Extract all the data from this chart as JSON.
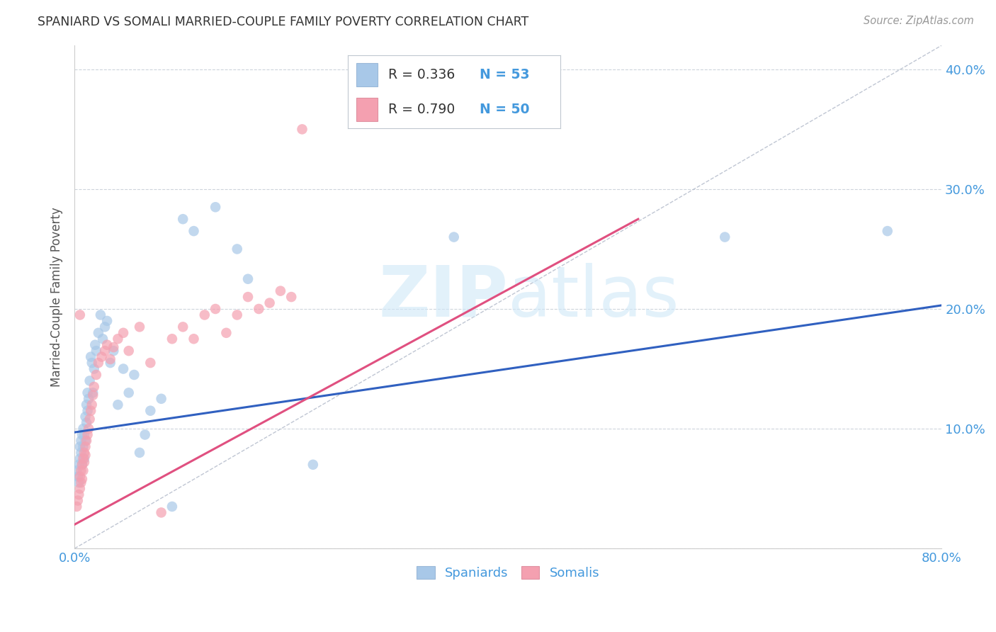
{
  "title": "SPANIARD VS SOMALI MARRIED-COUPLE FAMILY POVERTY CORRELATION CHART",
  "source": "Source: ZipAtlas.com",
  "ylabel": "Married-Couple Family Poverty",
  "xlim": [
    0.0,
    0.8
  ],
  "ylim": [
    0.0,
    0.42
  ],
  "xtick_vals": [
    0.0,
    0.1,
    0.2,
    0.3,
    0.4,
    0.5,
    0.6,
    0.7,
    0.8
  ],
  "xticklabels": [
    "0.0%",
    "",
    "",
    "",
    "",
    "",
    "",
    "",
    "80.0%"
  ],
  "ytick_vals": [
    0.0,
    0.1,
    0.2,
    0.3,
    0.4
  ],
  "yticklabels_right": [
    "",
    "10.0%",
    "20.0%",
    "30.0%",
    "40.0%"
  ],
  "spaniards_color": "#a8c8e8",
  "somalis_color": "#f4a0b0",
  "spaniards_line_color": "#3060c0",
  "somalis_line_color": "#e05080",
  "diagonal_color": "#b0b8c8",
  "watermark_color": "#d0e8f8",
  "background_color": "#ffffff",
  "grid_color": "#c8d0d8",
  "tick_label_color": "#4499dd",
  "title_color": "#333333",
  "legend_text_color": "#333333",
  "legend_value_color": "#4499dd",
  "spaniards_x": [
    0.002,
    0.003,
    0.004,
    0.004,
    0.005,
    0.005,
    0.006,
    0.006,
    0.007,
    0.007,
    0.008,
    0.008,
    0.009,
    0.009,
    0.01,
    0.01,
    0.011,
    0.011,
    0.012,
    0.012,
    0.013,
    0.014,
    0.015,
    0.016,
    0.017,
    0.018,
    0.019,
    0.02,
    0.022,
    0.024,
    0.026,
    0.028,
    0.03,
    0.033,
    0.036,
    0.04,
    0.045,
    0.05,
    0.055,
    0.06,
    0.065,
    0.07,
    0.08,
    0.09,
    0.1,
    0.11,
    0.13,
    0.15,
    0.16,
    0.22,
    0.35,
    0.6,
    0.75
  ],
  "spaniards_y": [
    0.065,
    0.06,
    0.055,
    0.07,
    0.075,
    0.085,
    0.08,
    0.09,
    0.095,
    0.07,
    0.085,
    0.1,
    0.075,
    0.095,
    0.11,
    0.09,
    0.12,
    0.105,
    0.115,
    0.13,
    0.125,
    0.14,
    0.16,
    0.155,
    0.13,
    0.15,
    0.17,
    0.165,
    0.18,
    0.195,
    0.175,
    0.185,
    0.19,
    0.155,
    0.165,
    0.12,
    0.15,
    0.13,
    0.145,
    0.08,
    0.095,
    0.115,
    0.125,
    0.035,
    0.275,
    0.265,
    0.285,
    0.25,
    0.225,
    0.07,
    0.26,
    0.26,
    0.265
  ],
  "somalis_x": [
    0.002,
    0.003,
    0.004,
    0.005,
    0.005,
    0.006,
    0.006,
    0.007,
    0.007,
    0.008,
    0.008,
    0.009,
    0.009,
    0.01,
    0.01,
    0.011,
    0.012,
    0.013,
    0.014,
    0.015,
    0.016,
    0.017,
    0.018,
    0.02,
    0.022,
    0.025,
    0.028,
    0.03,
    0.033,
    0.036,
    0.04,
    0.045,
    0.05,
    0.06,
    0.07,
    0.08,
    0.09,
    0.1,
    0.11,
    0.12,
    0.13,
    0.14,
    0.15,
    0.16,
    0.17,
    0.18,
    0.19,
    0.2,
    0.21,
    0.005
  ],
  "somalis_y": [
    0.035,
    0.04,
    0.045,
    0.05,
    0.06,
    0.055,
    0.065,
    0.07,
    0.058,
    0.075,
    0.065,
    0.08,
    0.072,
    0.085,
    0.078,
    0.09,
    0.095,
    0.1,
    0.108,
    0.115,
    0.12,
    0.128,
    0.135,
    0.145,
    0.155,
    0.16,
    0.165,
    0.17,
    0.158,
    0.168,
    0.175,
    0.18,
    0.165,
    0.185,
    0.155,
    0.03,
    0.175,
    0.185,
    0.175,
    0.195,
    0.2,
    0.18,
    0.195,
    0.21,
    0.2,
    0.205,
    0.215,
    0.21,
    0.35,
    0.195
  ],
  "spaniards_line_x": [
    0.0,
    0.8
  ],
  "spaniards_line_y": [
    0.097,
    0.203
  ],
  "somalis_line_x": [
    0.0,
    0.52
  ],
  "somalis_line_y": [
    0.02,
    0.275
  ],
  "diagonal_line_x": [
    0.0,
    0.8
  ],
  "diagonal_line_y": [
    0.0,
    0.42
  ]
}
